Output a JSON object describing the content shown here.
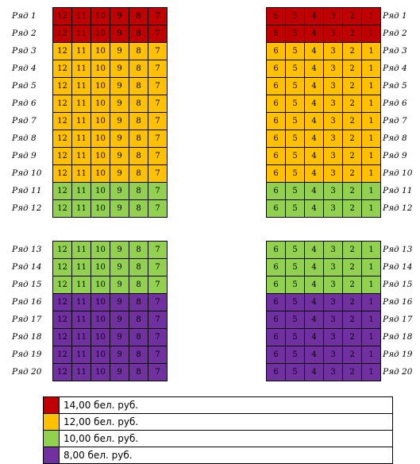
{
  "colors": {
    "red": "#c00000",
    "orange": "#ffc000",
    "green": "#92d050",
    "purple": "#7030a0"
  },
  "row_label_prefix": "Ряд",
  "left_seats": [
    "12",
    "11",
    "10",
    "9",
    "8",
    "7"
  ],
  "right_seats": [
    "6",
    "5",
    "4",
    "3",
    "2",
    "1"
  ],
  "top_section_rows": [
    {
      "label": "Ряд 1",
      "color": "red"
    },
    {
      "label": "Ряд 2",
      "color": "red"
    },
    {
      "label": "Ряд 3",
      "color": "orange"
    },
    {
      "label": "Ряд 4",
      "color": "orange"
    },
    {
      "label": "Ряд 5",
      "color": "orange"
    },
    {
      "label": "Ряд 6",
      "color": "orange"
    },
    {
      "label": "Ряд 7",
      "color": "orange"
    },
    {
      "label": "Ряд 8",
      "color": "orange"
    },
    {
      "label": "Ряд 9",
      "color": "orange"
    },
    {
      "label": "Ряд 10",
      "color": "orange"
    },
    {
      "label": "Ряд 11",
      "color": "green"
    },
    {
      "label": "Ряд 12",
      "color": "green"
    }
  ],
  "bottom_section_rows": [
    {
      "label": "Ряд 13",
      "color": "green"
    },
    {
      "label": "Ряд 14",
      "color": "green"
    },
    {
      "label": "Ряд 15",
      "color": "green"
    },
    {
      "label": "Ряд 16",
      "color": "purple"
    },
    {
      "label": "Ряд 17",
      "color": "purple"
    },
    {
      "label": "Ряд 18",
      "color": "purple"
    },
    {
      "label": "Ряд 19",
      "color": "purple"
    },
    {
      "label": "Ряд 20",
      "color": "purple"
    }
  ],
  "legend": [
    {
      "color": "red",
      "price": "14,00 бел. руб."
    },
    {
      "color": "orange",
      "price": "12,00 бел. руб."
    },
    {
      "color": "green",
      "price": "10,00 бел. руб."
    },
    {
      "color": "purple",
      "price": "8,00 бел. руб."
    }
  ]
}
